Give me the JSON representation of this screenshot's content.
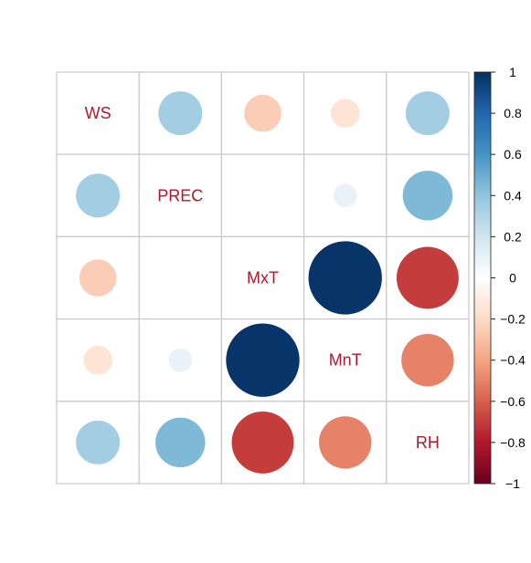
{
  "chart_data": {
    "type": "heatmap",
    "style": "correlation-circle-matrix",
    "variables": [
      "WS",
      "PREC",
      "MxT",
      "MnT",
      "RH"
    ],
    "diagonal_shows_labels": true,
    "matrix": [
      [
        1.0,
        0.35,
        -0.25,
        -0.15,
        0.35
      ],
      [
        0.35,
        1.0,
        0.0,
        0.1,
        0.45
      ],
      [
        -0.25,
        0.0,
        1.0,
        0.98,
        -0.7
      ],
      [
        -0.15,
        0.1,
        0.98,
        1.0,
        -0.5
      ],
      [
        0.35,
        0.45,
        -0.7,
        -0.5,
        1.0
      ]
    ],
    "colorbar": {
      "range": [
        -1,
        1
      ],
      "tick_labels": [
        "1",
        "0.8",
        "0.6",
        "0.4",
        "0.2",
        "0",
        "−0.2",
        "−0.4",
        "−0.6",
        "−0.8",
        "−1"
      ],
      "tick_values": [
        1,
        0.8,
        0.6,
        0.4,
        0.2,
        0,
        -0.2,
        -0.4,
        -0.6,
        -0.8,
        -1
      ],
      "colors": [
        "#67001F",
        "#B2182B",
        "#D6604D",
        "#F4A582",
        "#FDDBC7",
        "#FFFFFF",
        "#D1E5F0",
        "#92C5DE",
        "#4393C3",
        "#2166AC",
        "#053061"
      ]
    },
    "label_color": "#B2182B",
    "grid_color": "#C8C8C8"
  }
}
